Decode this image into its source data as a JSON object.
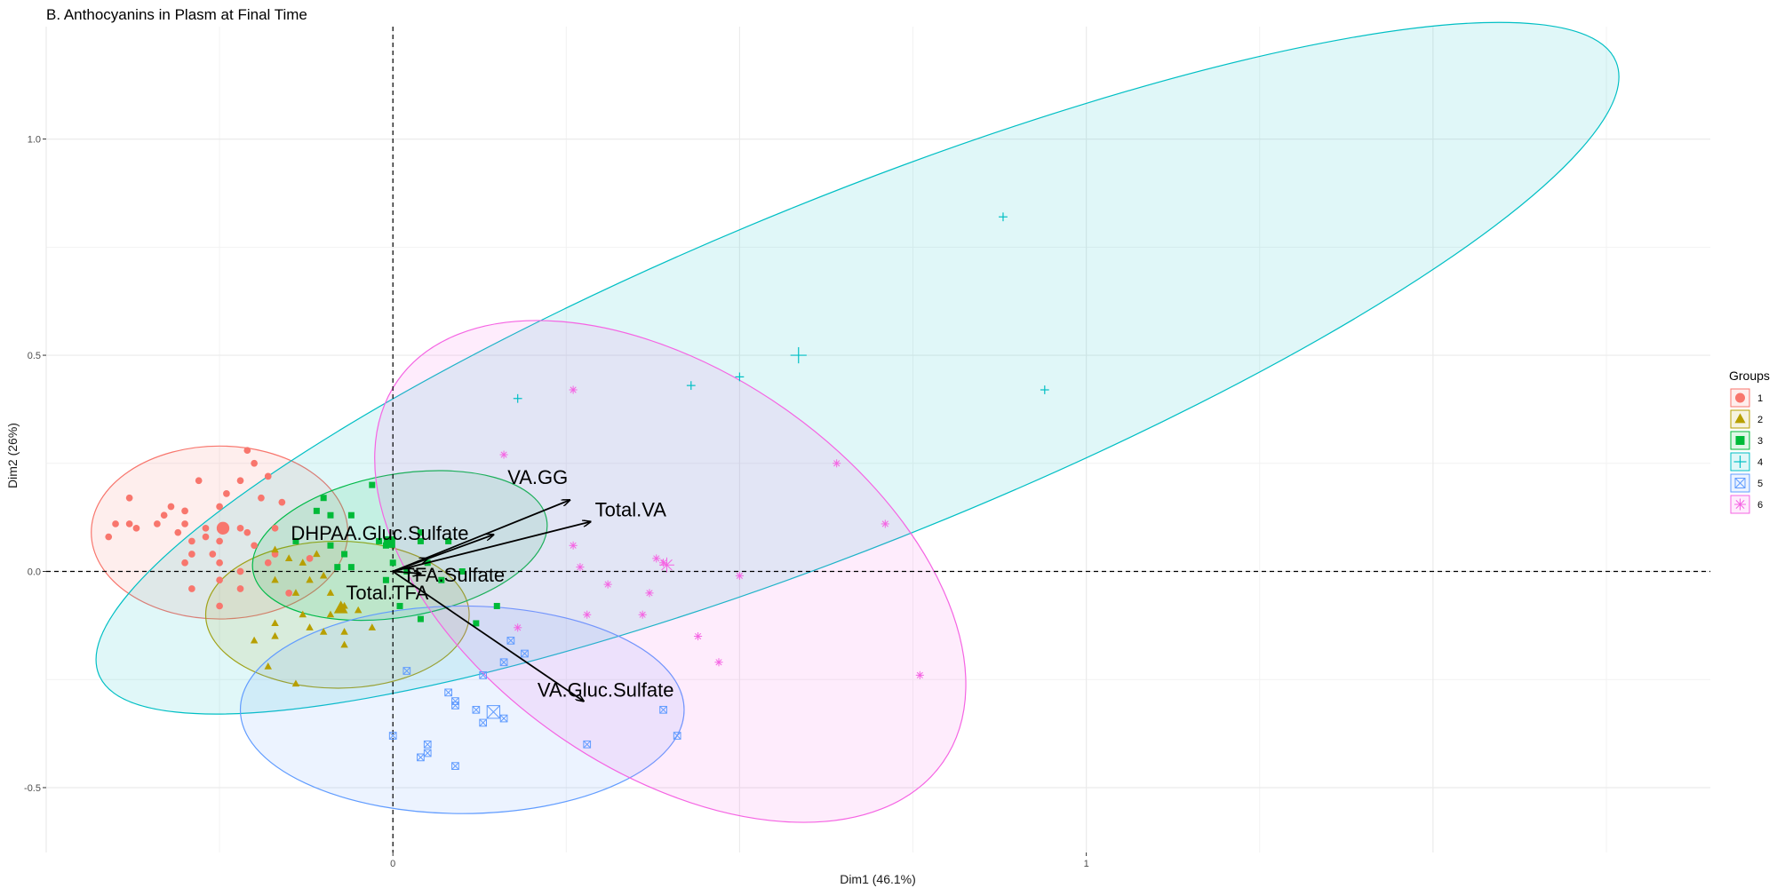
{
  "chart_data": {
    "type": "scatter",
    "title": "B. Anthocyanins in Plasm at Final Time",
    "xlabel": "Dim1 (46.1%)",
    "ylabel": "Dim2 (26%)",
    "xlim": [
      -0.5,
      1.9
    ],
    "ylim": [
      -0.65,
      1.26
    ],
    "x_ticks": [
      0,
      1
    ],
    "x_tick_labels": [
      "0",
      "1"
    ],
    "y_ticks": [
      -0.5,
      0.0,
      0.5,
      1.0
    ],
    "y_tick_labels": [
      "-0.5",
      "0.0",
      "0.5",
      "1.0"
    ],
    "grid": true,
    "reference_lines": {
      "x": 0,
      "y": 0,
      "style": "dashed"
    },
    "legend": {
      "title": "Groups",
      "position": "right",
      "entries": [
        {
          "label": "1",
          "color": "#F8766D",
          "shape": "circle"
        },
        {
          "label": "2",
          "color": "#B79F00",
          "shape": "triangle"
        },
        {
          "label": "3",
          "color": "#00BA38",
          "shape": "square"
        },
        {
          "label": "4",
          "color": "#00BFC4",
          "shape": "plus"
        },
        {
          "label": "5",
          "color": "#619CFF",
          "shape": "boxed-x"
        },
        {
          "label": "6",
          "color": "#F564E3",
          "shape": "asterisk"
        }
      ]
    },
    "variables": [
      {
        "name": "VA.GG",
        "x": 0.255,
        "y": 0.165
      },
      {
        "name": "Total.VA",
        "x": 0.285,
        "y": 0.115
      },
      {
        "name": "DHPAA.Gluc.Sulfate",
        "x": 0.145,
        "y": 0.085
      },
      {
        "name": "TFA.Sulfate",
        "x": 0.05,
        "y": 0.03
      },
      {
        "name": "Total.TFA",
        "x": 0.04,
        "y": -0.005
      },
      {
        "name": "VA.Gluc.Sulfate",
        "x": 0.275,
        "y": -0.3
      }
    ],
    "ellipses": [
      {
        "group": "1",
        "cx": -0.25,
        "cy": 0.09,
        "rx": 0.185,
        "ry": 0.2,
        "angle": 0
      },
      {
        "group": "2",
        "cx": -0.08,
        "cy": -0.1,
        "rx": 0.19,
        "ry": 0.17,
        "angle": 0
      },
      {
        "group": "3",
        "cx": 0.01,
        "cy": 0.06,
        "rx": 0.215,
        "ry": 0.165,
        "angle": 10
      },
      {
        "group": "4",
        "cx": 0.67,
        "cy": 0.47,
        "rx": 1.18,
        "ry": 0.4,
        "angle": 22
      },
      {
        "group": "5",
        "cx": 0.1,
        "cy": -0.32,
        "rx": 0.32,
        "ry": 0.24,
        "angle": 0
      },
      {
        "group": "6",
        "cx": 0.4,
        "cy": 0.0,
        "rx": 0.48,
        "ry": 0.46,
        "angle": -35
      }
    ],
    "series": [
      {
        "name": "1",
        "points": [
          [
            -0.21,
            0.28
          ],
          [
            -0.2,
            0.25
          ],
          [
            -0.18,
            0.22
          ],
          [
            -0.22,
            0.21
          ],
          [
            -0.28,
            0.21
          ],
          [
            -0.38,
            0.17
          ],
          [
            -0.33,
            0.13
          ],
          [
            -0.32,
            0.15
          ],
          [
            -0.3,
            0.14
          ],
          [
            -0.25,
            0.15
          ],
          [
            -0.24,
            0.18
          ],
          [
            -0.19,
            0.17
          ],
          [
            -0.16,
            0.16
          ],
          [
            -0.34,
            0.11
          ],
          [
            -0.38,
            0.11
          ],
          [
            -0.4,
            0.11
          ],
          [
            -0.37,
            0.1
          ],
          [
            -0.41,
            0.08
          ],
          [
            -0.3,
            0.11
          ],
          [
            -0.27,
            0.1
          ],
          [
            -0.22,
            0.1
          ],
          [
            -0.17,
            0.1
          ],
          [
            -0.21,
            0.09
          ],
          [
            -0.27,
            0.08
          ],
          [
            -0.29,
            0.07
          ],
          [
            -0.31,
            0.09
          ],
          [
            -0.25,
            0.07
          ],
          [
            -0.2,
            0.06
          ],
          [
            -0.17,
            0.04
          ],
          [
            -0.26,
            0.04
          ],
          [
            -0.29,
            0.04
          ],
          [
            -0.3,
            0.02
          ],
          [
            -0.25,
            0.02
          ],
          [
            -0.18,
            0.02
          ],
          [
            -0.22,
            0.0
          ],
          [
            -0.25,
            -0.02
          ],
          [
            -0.29,
            -0.04
          ],
          [
            -0.22,
            -0.04
          ],
          [
            -0.25,
            -0.08
          ],
          [
            -0.15,
            -0.05
          ],
          [
            -0.12,
            0.03
          ]
        ],
        "centroid": [
          -0.245,
          0.1
        ]
      },
      {
        "name": "2",
        "points": [
          [
            -0.17,
            0.05
          ],
          [
            -0.15,
            0.03
          ],
          [
            -0.13,
            0.02
          ],
          [
            -0.11,
            0.04
          ],
          [
            -0.1,
            -0.01
          ],
          [
            -0.12,
            -0.02
          ],
          [
            -0.17,
            -0.02
          ],
          [
            -0.14,
            -0.05
          ],
          [
            -0.09,
            -0.05
          ],
          [
            -0.07,
            -0.08
          ],
          [
            -0.05,
            -0.09
          ],
          [
            -0.09,
            -0.1
          ],
          [
            -0.13,
            -0.1
          ],
          [
            -0.17,
            -0.12
          ],
          [
            -0.12,
            -0.13
          ],
          [
            -0.1,
            -0.14
          ],
          [
            -0.07,
            -0.14
          ],
          [
            -0.03,
            -0.13
          ],
          [
            -0.2,
            -0.16
          ],
          [
            -0.17,
            -0.15
          ],
          [
            -0.07,
            -0.17
          ],
          [
            -0.14,
            -0.26
          ],
          [
            -0.18,
            -0.22
          ]
        ],
        "centroid": [
          -0.075,
          -0.085
        ]
      },
      {
        "name": "3",
        "points": [
          [
            -0.1,
            0.17
          ],
          [
            -0.11,
            0.14
          ],
          [
            -0.09,
            0.13
          ],
          [
            -0.06,
            0.13
          ],
          [
            -0.03,
            0.2
          ],
          [
            -0.14,
            0.07
          ],
          [
            -0.09,
            0.06
          ],
          [
            -0.07,
            0.04
          ],
          [
            -0.08,
            0.01
          ],
          [
            -0.06,
            0.01
          ],
          [
            -0.02,
            0.07
          ],
          [
            -0.01,
            0.06
          ],
          [
            0.0,
            0.02
          ],
          [
            0.02,
            0.0
          ],
          [
            0.04,
            0.07
          ],
          [
            0.05,
            0.02
          ],
          [
            0.08,
            0.07
          ],
          [
            0.04,
            0.09
          ],
          [
            0.1,
            0.0
          ],
          [
            0.07,
            -0.02
          ],
          [
            -0.01,
            -0.02
          ],
          [
            0.01,
            -0.08
          ],
          [
            0.04,
            -0.11
          ],
          [
            0.15,
            -0.08
          ],
          [
            0.12,
            -0.12
          ]
        ],
        "centroid": [
          -0.005,
          0.068
        ]
      },
      {
        "name": "4",
        "points": [
          [
            0.88,
            0.82
          ],
          [
            0.94,
            0.42
          ],
          [
            0.43,
            0.43
          ],
          [
            0.5,
            0.45
          ],
          [
            0.18,
            0.4
          ]
        ],
        "centroid": [
          0.585,
          0.5
        ]
      },
      {
        "name": "5",
        "points": [
          [
            0.17,
            -0.16
          ],
          [
            0.19,
            -0.19
          ],
          [
            0.16,
            -0.21
          ],
          [
            0.13,
            -0.24
          ],
          [
            0.02,
            -0.23
          ],
          [
            0.08,
            -0.28
          ],
          [
            0.09,
            -0.31
          ],
          [
            0.09,
            -0.3
          ],
          [
            0.12,
            -0.32
          ],
          [
            0.13,
            -0.35
          ],
          [
            0.16,
            -0.34
          ],
          [
            0.0,
            -0.38
          ],
          [
            0.05,
            -0.4
          ],
          [
            0.05,
            -0.42
          ],
          [
            0.04,
            -0.43
          ],
          [
            0.09,
            -0.45
          ],
          [
            0.28,
            -0.4
          ],
          [
            0.39,
            -0.32
          ],
          [
            0.41,
            -0.38
          ]
        ],
        "centroid": [
          0.145,
          -0.325
        ]
      },
      {
        "name": "6",
        "points": [
          [
            0.26,
            0.42
          ],
          [
            0.16,
            0.27
          ],
          [
            0.64,
            0.25
          ],
          [
            0.71,
            0.11
          ],
          [
            0.26,
            0.06
          ],
          [
            0.27,
            0.01
          ],
          [
            0.38,
            0.03
          ],
          [
            0.39,
            0.02
          ],
          [
            0.5,
            -0.01
          ],
          [
            0.31,
            -0.03
          ],
          [
            0.37,
            -0.05
          ],
          [
            0.36,
            -0.1
          ],
          [
            0.28,
            -0.1
          ],
          [
            0.18,
            -0.13
          ],
          [
            0.44,
            -0.15
          ],
          [
            0.47,
            -0.21
          ],
          [
            0.76,
            -0.24
          ]
        ],
        "centroid": [
          0.395,
          0.015
        ]
      }
    ]
  }
}
